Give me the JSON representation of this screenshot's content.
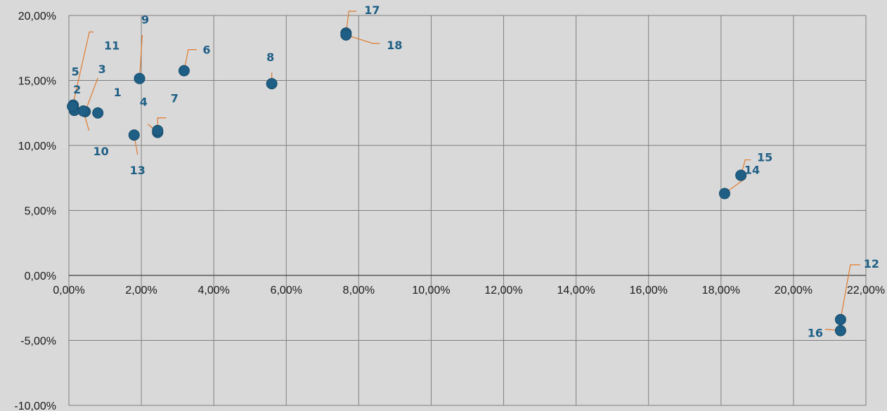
{
  "chart_data": {
    "type": "scatter",
    "title": "",
    "xlabel": "",
    "ylabel": "",
    "xlim": [
      0,
      0.22
    ],
    "ylim": [
      -0.1,
      0.2
    ],
    "x_ticks": [
      0,
      0.02,
      0.04,
      0.06,
      0.08,
      0.1,
      0.12,
      0.14,
      0.16,
      0.18,
      0.2,
      0.22
    ],
    "x_tick_labels": [
      "0,00%",
      "2,00%",
      "4,00%",
      "6,00%",
      "8,00%",
      "10,00%",
      "12,00%",
      "14,00%",
      "16,00%",
      "18,00%",
      "20,00%",
      "22,00%"
    ],
    "y_ticks": [
      0.2,
      0.15,
      0.1,
      0.05,
      0,
      -0.05,
      -0.1
    ],
    "y_tick_labels": [
      "20,00%",
      "15,00%",
      "10,00%",
      "5,00%",
      "0,00%",
      "-5,00%",
      "-10,00%"
    ],
    "grid": true,
    "legend": false,
    "marker_color": "#1f5f86",
    "label_color": "#1f5f86",
    "leader_color": "#e07a2e",
    "background": "#d9d9d9",
    "points": [
      {
        "label": "1",
        "x": 0.008,
        "y": 0.125
      },
      {
        "label": "2",
        "x": 0.0015,
        "y": 0.127
      },
      {
        "label": "3",
        "x": 0.0045,
        "y": 0.126
      },
      {
        "label": "4",
        "x": 0.0245,
        "y": 0.11
      },
      {
        "label": "5",
        "x": 0.0012,
        "y": 0.131
      },
      {
        "label": "6",
        "x": 0.0318,
        "y": 0.1575
      },
      {
        "label": "7",
        "x": 0.0245,
        "y": 0.1115
      },
      {
        "label": "8",
        "x": 0.056,
        "y": 0.1475
      },
      {
        "label": "9",
        "x": 0.0195,
        "y": 0.1515
      },
      {
        "label": "10",
        "x": 0.004,
        "y": 0.1265
      },
      {
        "label": "11",
        "x": 0.001,
        "y": 0.13
      },
      {
        "label": "12",
        "x": 0.213,
        "y": -0.034
      },
      {
        "label": "13",
        "x": 0.018,
        "y": 0.108
      },
      {
        "label": "14",
        "x": 0.181,
        "y": 0.063
      },
      {
        "label": "15",
        "x": 0.1855,
        "y": 0.077
      },
      {
        "label": "16",
        "x": 0.213,
        "y": -0.0425
      },
      {
        "label": "17",
        "x": 0.0765,
        "y": 0.1865
      },
      {
        "label": "18",
        "x": 0.0765,
        "y": 0.185
      }
    ]
  }
}
